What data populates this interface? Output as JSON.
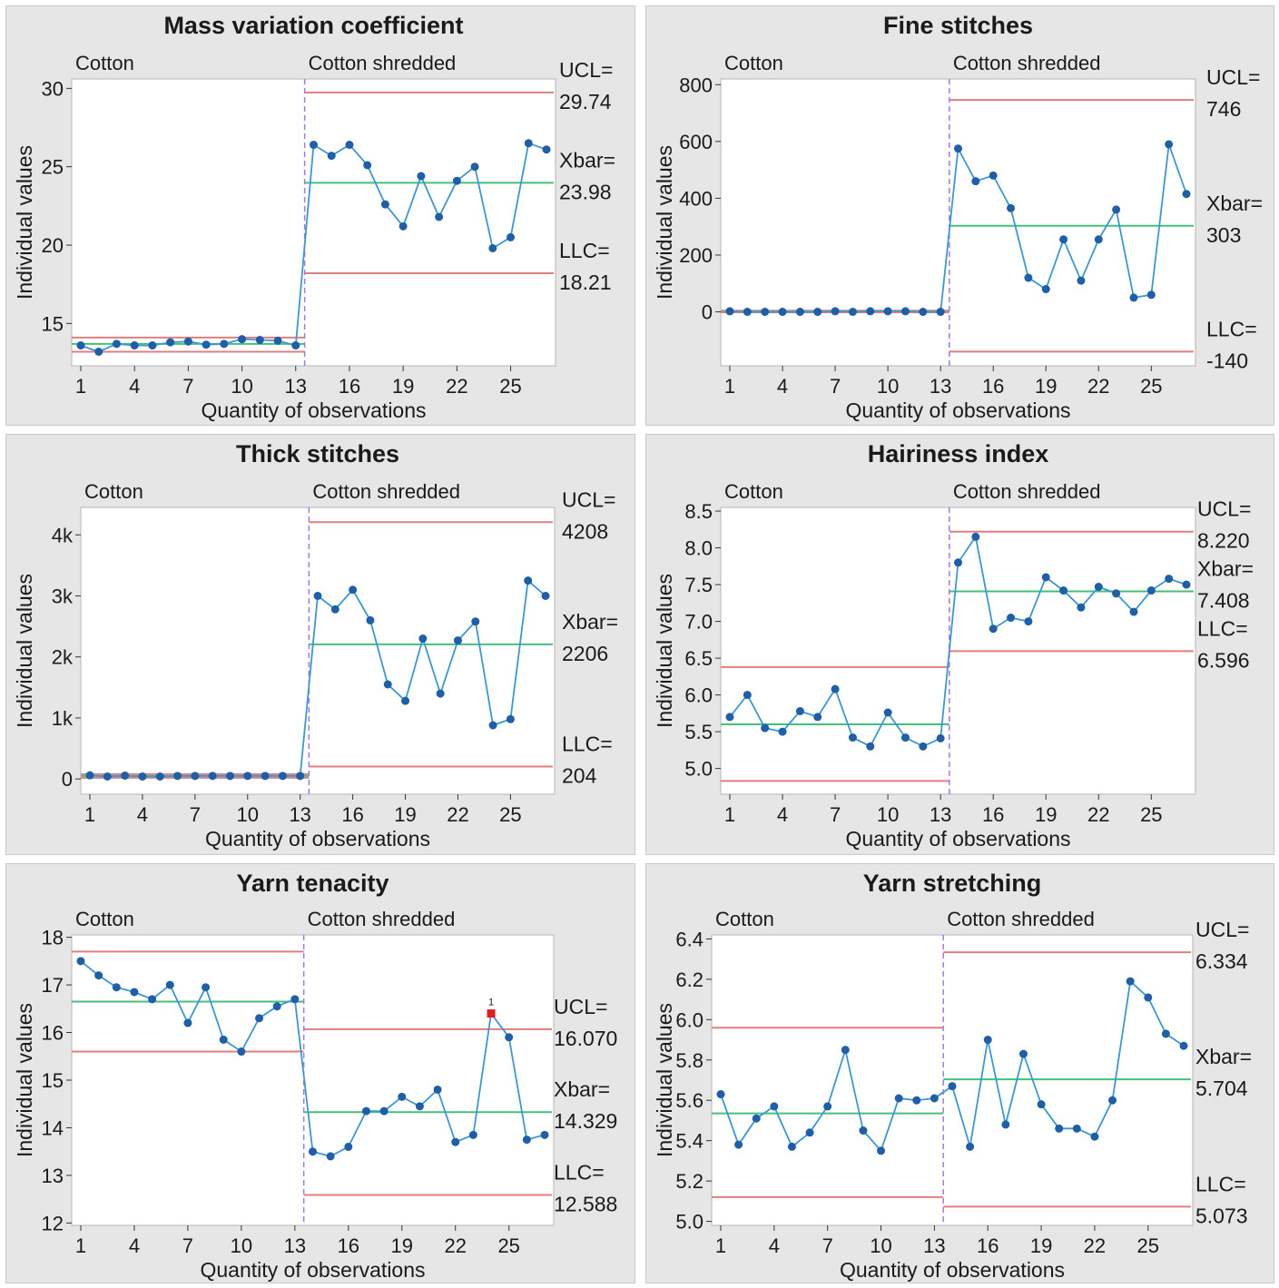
{
  "x_ticks": [
    "1",
    "4",
    "7",
    "10",
    "13",
    "16",
    "19",
    "22",
    "25"
  ],
  "group_labels": [
    "Cotton",
    "Cotton shredded"
  ],
  "xlabel": "Quantity of observations",
  "ylabel": "Individual values",
  "colors": {
    "data": "#3d97d6",
    "point": "#1f5ea8",
    "center": "#45c07a",
    "limit": "#e07f7f",
    "divider": "#a678e6",
    "flag": "#e01e1e"
  },
  "chart_data": [
    {
      "type": "line",
      "title": "Mass variation coefficient",
      "ylim": [
        12.3,
        30.6
      ],
      "yticks": [
        15,
        20,
        25,
        30
      ],
      "ytick_labels": [
        "15",
        "20",
        "25",
        "30"
      ],
      "values": [
        13.6,
        13.2,
        13.7,
        13.6,
        13.6,
        13.8,
        13.85,
        13.65,
        13.7,
        14.0,
        13.95,
        13.9,
        13.6,
        26.4,
        25.7,
        26.4,
        25.1,
        22.6,
        21.2,
        24.4,
        21.8,
        24.1,
        25.0,
        19.8,
        20.5,
        26.5,
        26.1
      ],
      "groups": [
        {
          "ucl": 14.1,
          "center": 13.7,
          "lcl": 13.2
        },
        {
          "ucl": 29.74,
          "center": 23.98,
          "lcl": 18.21
        }
      ],
      "side_labels": [
        "UCL=",
        "29.74",
        "Xbar=",
        "23.98",
        "LLC=",
        "18.21"
      ],
      "flagged": []
    },
    {
      "type": "line",
      "title": "Fine stitches",
      "ylim": [
        -190,
        820
      ],
      "yticks": [
        0,
        200,
        400,
        600,
        800
      ],
      "ytick_labels": [
        "0",
        "200",
        "400",
        "600",
        "800"
      ],
      "values": [
        2,
        0,
        0,
        0,
        0,
        0,
        2,
        0,
        2,
        2,
        2,
        0,
        0,
        575,
        460,
        480,
        365,
        120,
        80,
        255,
        110,
        255,
        360,
        50,
        60,
        590,
        415
      ],
      "groups": [
        {
          "ucl": 4,
          "center": 1,
          "lcl": -2
        },
        {
          "ucl": 746,
          "center": 303,
          "lcl": -140
        }
      ],
      "side_labels": [
        "UCL=",
        "746",
        "Xbar=",
        "303",
        "LLC=",
        "-140"
      ],
      "flagged": []
    },
    {
      "type": "line",
      "title": "Thick stitches",
      "ylim": [
        -250,
        4450
      ],
      "yticks": [
        0,
        1000,
        2000,
        3000,
        4000
      ],
      "ytick_labels": [
        "0",
        "1k",
        "2k",
        "3k",
        "4k"
      ],
      "values": [
        60,
        40,
        55,
        40,
        40,
        50,
        50,
        50,
        50,
        50,
        50,
        50,
        50,
        3000,
        2780,
        3100,
        2600,
        1550,
        1280,
        2300,
        1400,
        2270,
        2580,
        880,
        980,
        3250,
        3000
      ],
      "groups": [
        {
          "ucl": 80,
          "center": 50,
          "lcl": 20
        },
        {
          "ucl": 4208,
          "center": 2206,
          "lcl": 204
        }
      ],
      "side_labels": [
        "UCL=",
        "4208",
        "Xbar=",
        "2206",
        "LLC=",
        "204"
      ],
      "flagged": []
    },
    {
      "type": "line",
      "title": "Hairiness index",
      "ylim": [
        4.65,
        8.55
      ],
      "yticks": [
        5.0,
        5.5,
        6.0,
        6.5,
        7.0,
        7.5,
        8.0,
        8.5
      ],
      "ytick_labels": [
        "5.0",
        "5.5",
        "6.0",
        "6.5",
        "7.0",
        "7.5",
        "8.0",
        "8.5"
      ],
      "values": [
        5.7,
        6.0,
        5.55,
        5.5,
        5.78,
        5.7,
        6.08,
        5.42,
        5.3,
        5.76,
        5.42,
        5.3,
        5.41,
        7.8,
        8.15,
        6.9,
        7.05,
        7.0,
        7.6,
        7.42,
        7.19,
        7.47,
        7.38,
        7.13,
        7.42,
        7.58,
        7.5
      ],
      "groups": [
        {
          "ucl": 6.38,
          "center": 5.6,
          "lcl": 4.83
        },
        {
          "ucl": 8.22,
          "center": 7.408,
          "lcl": 6.596
        }
      ],
      "side_labels": [
        "UCL=",
        "8.220",
        "Xbar=",
        "7.408",
        "LLC=",
        "6.596"
      ],
      "flagged": []
    },
    {
      "type": "line",
      "title": "Yarn tenacity",
      "ylim": [
        11.95,
        18.05
      ],
      "yticks": [
        12,
        13,
        14,
        15,
        16,
        17,
        18
      ],
      "ytick_labels": [
        "12",
        "13",
        "14",
        "15",
        "16",
        "17",
        "18"
      ],
      "values": [
        17.5,
        17.2,
        16.95,
        16.85,
        16.7,
        17.0,
        16.2,
        16.95,
        15.85,
        15.6,
        16.3,
        16.55,
        16.7,
        13.5,
        13.4,
        13.6,
        14.35,
        14.35,
        14.65,
        14.45,
        14.8,
        13.7,
        13.85,
        16.4,
        15.9,
        13.75,
        13.85
      ],
      "groups": [
        {
          "ucl": 17.7,
          "center": 16.65,
          "lcl": 15.6
        },
        {
          "ucl": 16.07,
          "center": 14.329,
          "lcl": 12.588
        }
      ],
      "side_labels": [
        "UCL=",
        "16.070",
        "Xbar=",
        "14.329",
        "LLC=",
        "12.588"
      ],
      "flagged": [
        23
      ],
      "flag_label": "1"
    },
    {
      "type": "line",
      "title": "Yarn stretching",
      "ylim": [
        4.98,
        6.42
      ],
      "yticks": [
        5.0,
        5.2,
        5.4,
        5.6,
        5.8,
        6.0,
        6.2,
        6.4
      ],
      "ytick_labels": [
        "5.0",
        "5.2",
        "5.4",
        "5.6",
        "5.8",
        "6.0",
        "6.2",
        "6.4"
      ],
      "values": [
        5.63,
        5.38,
        5.51,
        5.57,
        5.37,
        5.44,
        5.57,
        5.85,
        5.45,
        5.35,
        5.61,
        5.6,
        5.61,
        5.67,
        5.37,
        5.9,
        5.48,
        5.83,
        5.58,
        5.46,
        5.46,
        5.42,
        5.6,
        6.19,
        6.11,
        5.93,
        5.87
      ],
      "groups": [
        {
          "ucl": 5.96,
          "center": 5.535,
          "lcl": 5.12
        },
        {
          "ucl": 6.334,
          "center": 5.704,
          "lcl": 5.073
        }
      ],
      "side_labels": [
        "UCL=",
        "6.334",
        "Xbar=",
        "5.704",
        "LLC=",
        "5.073"
      ],
      "flagged": []
    }
  ]
}
